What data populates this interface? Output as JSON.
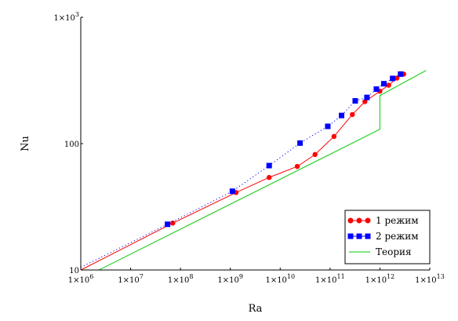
{
  "chart_data": {
    "type": "line",
    "xscale": "log",
    "yscale": "log",
    "xlabel": "Ra",
    "ylabel": "Nu",
    "xlim": [
      1000000,
      10000000000000
    ],
    "ylim": [
      10,
      1000
    ],
    "grid": false,
    "legend_position": "bottom-right",
    "x_ticks": [
      {
        "value": 1000000,
        "mant": "1×10",
        "exp": "6"
      },
      {
        "value": 10000000,
        "mant": "1×10",
        "exp": "7"
      },
      {
        "value": 100000000,
        "mant": "1×10",
        "exp": "8"
      },
      {
        "value": 1000000000,
        "mant": "1×10",
        "exp": "9"
      },
      {
        "value": 10000000000,
        "mant": "1×10",
        "exp": "10"
      },
      {
        "value": 100000000000,
        "mant": "1×10",
        "exp": "11"
      },
      {
        "value": 1000000000000,
        "mant": "1×10",
        "exp": "12"
      },
      {
        "value": 10000000000000,
        "mant": "1×10",
        "exp": "13"
      }
    ],
    "y_ticks": [
      {
        "value": 10,
        "mant": "10",
        "exp": ""
      },
      {
        "value": 100,
        "mant": "100",
        "exp": ""
      },
      {
        "value": 1000,
        "mant": "1×10",
        "exp": "3"
      }
    ],
    "series": [
      {
        "name": "1 режим",
        "color": "#ff0000",
        "marker": "circle",
        "line": "solid",
        "points": [
          [
            1000000,
            10
          ],
          [
            70000000,
            23.5
          ],
          [
            1300000000,
            41
          ],
          [
            6000000000,
            54
          ],
          [
            22000000000,
            66
          ],
          [
            50000000000,
            82
          ],
          [
            120000000000,
            114
          ],
          [
            280000000000,
            170
          ],
          [
            500000000000,
            215
          ],
          [
            1000000000000,
            260
          ],
          [
            1500000000000,
            290
          ],
          [
            2200000000000,
            330
          ],
          [
            3000000000000,
            355
          ]
        ]
      },
      {
        "name": "2 режим",
        "color": "#0000ff",
        "marker": "square",
        "line": "dotted",
        "points": [
          [
            1000000,
            10.5
          ],
          [
            55000000,
            23
          ],
          [
            1100000000,
            42
          ],
          [
            6000000000,
            67
          ],
          [
            25000000000,
            101
          ],
          [
            90000000000,
            137
          ],
          [
            170000000000,
            167
          ],
          [
            320000000000,
            218
          ],
          [
            550000000000,
            232
          ],
          [
            850000000000,
            270
          ],
          [
            1200000000000,
            298
          ],
          [
            1800000000000,
            328
          ],
          [
            2600000000000,
            355
          ]
        ]
      },
      {
        "name": "Теория",
        "color": "#00cc00",
        "marker": "none",
        "line": "solid",
        "points": [
          [
            2300000,
            10
          ],
          [
            1000000000000,
            130
          ],
          [
            1000000000000,
            240
          ],
          [
            8500000000000,
            380
          ]
        ]
      }
    ]
  }
}
